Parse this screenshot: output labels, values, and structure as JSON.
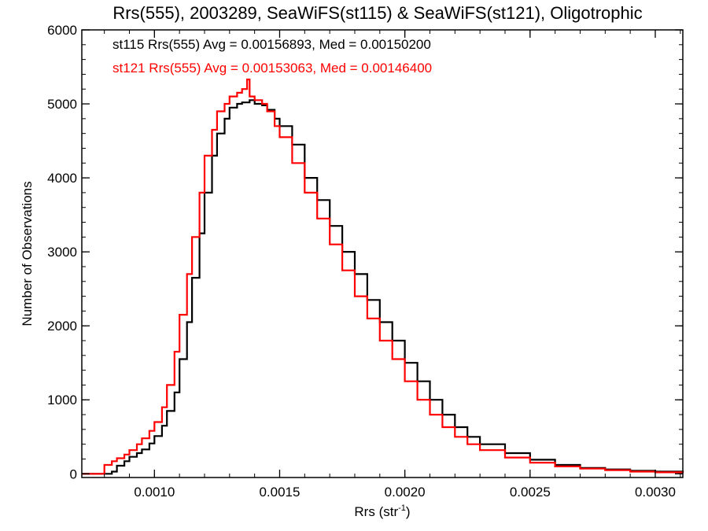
{
  "chart_data": {
    "type": "line",
    "step": true,
    "title": "Rrs(555), 2003289, SeaWiFS(st115) & SeaWiFS(st121), Oligotrophic",
    "xlabel": "Rrs (str",
    "xlabel_sup": "-1",
    "xlabel_tail": ")",
    "ylabel": "Number of Observations",
    "xlim": [
      0.00071,
      0.00311
    ],
    "ylim": [
      -50,
      6000
    ],
    "xticks": [
      0.001,
      0.0015,
      0.002,
      0.0025,
      0.003
    ],
    "xtick_labels": [
      "0.0010",
      "0.0015",
      "0.0020",
      "0.0025",
      "0.0030"
    ],
    "yticks": [
      0,
      1000,
      2000,
      3000,
      4000,
      5000,
      6000
    ],
    "ytick_labels": [
      "0",
      "1000",
      "2000",
      "3000",
      "4000",
      "5000",
      "6000"
    ],
    "grid": false,
    "legend_position": "top-left",
    "annotations": [
      {
        "text": "st115 Rrs(555) Avg = 0.00156893, Med = 0.00150200",
        "color": "#000000"
      },
      {
        "text": "st121 Rrs(555) Avg = 0.00153063, Med = 0.00146400",
        "color": "#ff0000"
      }
    ],
    "series": [
      {
        "color": "#000000",
        "x": [
          0.00071,
          0.0008,
          0.00083,
          0.00085,
          0.00088,
          0.0009,
          0.00093,
          0.00095,
          0.00098,
          0.001,
          0.00103,
          0.00105,
          0.00108,
          0.0011,
          0.00113,
          0.00115,
          0.00118,
          0.0012,
          0.00123,
          0.00125,
          0.00128,
          0.0013,
          0.00133,
          0.00135,
          0.00138,
          0.0014,
          0.00143,
          0.00145,
          0.00148,
          0.0015,
          0.00155,
          0.0016,
          0.00165,
          0.0017,
          0.00175,
          0.0018,
          0.00185,
          0.0019,
          0.00195,
          0.002,
          0.00205,
          0.0021,
          0.00215,
          0.0022,
          0.00225,
          0.0023,
          0.0024,
          0.0025,
          0.0026,
          0.0027,
          0.0028,
          0.0029,
          0.003,
          0.00311
        ],
        "y": [
          0,
          0,
          30,
          110,
          170,
          230,
          280,
          330,
          410,
          510,
          650,
          850,
          1100,
          1550,
          2050,
          2650,
          3250,
          3800,
          4300,
          4600,
          4800,
          4950,
          5000,
          5020,
          5050,
          5000,
          4980,
          4920,
          4800,
          4700,
          4450,
          4000,
          3700,
          3350,
          3000,
          2700,
          2350,
          2050,
          1800,
          1500,
          1250,
          1000,
          800,
          630,
          500,
          400,
          280,
          190,
          120,
          80,
          60,
          40,
          30,
          15
        ]
      },
      {
        "color": "#ff0000",
        "x": [
          0.00071,
          0.00078,
          0.0008,
          0.00083,
          0.00085,
          0.00088,
          0.0009,
          0.00093,
          0.00095,
          0.00098,
          0.001,
          0.00103,
          0.00105,
          0.00108,
          0.0011,
          0.00113,
          0.00115,
          0.00118,
          0.0012,
          0.00123,
          0.00125,
          0.00128,
          0.0013,
          0.00133,
          0.00135,
          0.00137,
          0.00138,
          0.0014,
          0.00143,
          0.00145,
          0.00148,
          0.0015,
          0.00155,
          0.0016,
          0.00165,
          0.0017,
          0.00175,
          0.0018,
          0.00185,
          0.0019,
          0.00195,
          0.002,
          0.00205,
          0.0021,
          0.00215,
          0.0022,
          0.00225,
          0.0023,
          0.0024,
          0.0025,
          0.0026,
          0.0027,
          0.0028,
          0.0029,
          0.003,
          0.00311
        ],
        "y": [
          0,
          0,
          120,
          170,
          210,
          260,
          320,
          400,
          480,
          580,
          700,
          900,
          1200,
          1650,
          2150,
          2700,
          3200,
          3800,
          4300,
          4650,
          4900,
          5000,
          5100,
          5150,
          5200,
          5330,
          5100,
          5050,
          5000,
          4900,
          4700,
          4550,
          4200,
          3800,
          3450,
          3100,
          2750,
          2400,
          2100,
          1800,
          1550,
          1250,
          1000,
          800,
          630,
          500,
          400,
          320,
          220,
          150,
          100,
          70,
          50,
          30,
          20,
          10
        ]
      }
    ]
  }
}
